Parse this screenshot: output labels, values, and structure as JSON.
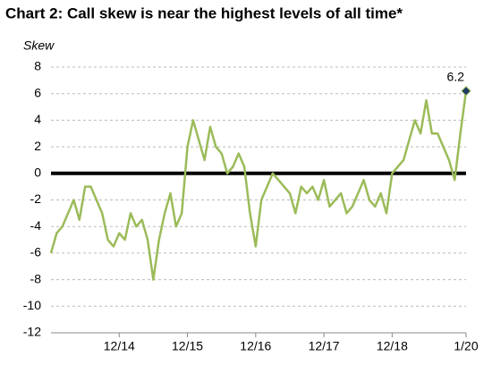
{
  "chart_data": {
    "type": "line",
    "title": "Chart 2: Call skew is near the highest levels of all time*",
    "y_label": "Skew",
    "x": [
      "12/13",
      "1/14",
      "2/14",
      "3/14",
      "4/14",
      "5/14",
      "6/14",
      "7/14",
      "8/14",
      "9/14",
      "10/14",
      "11/14",
      "12/14",
      "1/15",
      "2/15",
      "3/15",
      "4/15",
      "5/15",
      "6/15",
      "7/15",
      "8/15",
      "9/15",
      "10/15",
      "11/15",
      "12/15",
      "1/16",
      "2/16",
      "3/16",
      "4/16",
      "5/16",
      "6/16",
      "7/16",
      "8/16",
      "9/16",
      "10/16",
      "11/16",
      "12/16",
      "1/17",
      "2/17",
      "3/17",
      "4/17",
      "5/17",
      "6/17",
      "7/17",
      "8/17",
      "9/17",
      "10/17",
      "11/17",
      "12/17",
      "1/18",
      "2/18",
      "3/18",
      "4/18",
      "5/18",
      "6/18",
      "7/18",
      "8/18",
      "9/18",
      "10/18",
      "11/18",
      "12/18",
      "1/19",
      "2/19",
      "3/19",
      "4/19",
      "5/19",
      "6/19",
      "7/19",
      "8/19",
      "9/19",
      "10/19",
      "11/19",
      "12/19",
      "1/20"
    ],
    "series": [
      {
        "name": "Skew",
        "color": "#9bbb59",
        "values": [
          -6,
          -4.5,
          -4,
          -3,
          -2,
          -3.5,
          -1,
          -1,
          -2,
          -3,
          -5,
          -5.5,
          -4.5,
          -5,
          -3,
          -4,
          -3.5,
          -5,
          -8,
          -5,
          -3,
          -1.5,
          -4,
          -3,
          2,
          4,
          2.5,
          1,
          3.5,
          2,
          1.5,
          0,
          0.5,
          1.5,
          0.5,
          -3,
          -5.5,
          -2,
          -1,
          0,
          -0.5,
          -1,
          -1.5,
          -3,
          -1,
          -1.5,
          -1,
          -2,
          -0.5,
          -2.5,
          -2,
          -1.5,
          -3,
          -2.5,
          -1.5,
          -0.5,
          -2,
          -2.5,
          -1.5,
          -3,
          0,
          0.5,
          1,
          2.5,
          4,
          3,
          5.5,
          3,
          3,
          2,
          1,
          -0.5,
          3,
          6.2
        ]
      }
    ],
    "xticks": [
      "12/14",
      "12/15",
      "12/16",
      "12/17",
      "12/18",
      "1/20"
    ],
    "ylim": [
      -12,
      8
    ],
    "yticks": [
      -12,
      -10,
      -8,
      -6,
      -4,
      -2,
      0,
      2,
      4,
      6,
      8
    ],
    "grid": true,
    "zero_line": true,
    "marker_color": "#1f3864"
  }
}
